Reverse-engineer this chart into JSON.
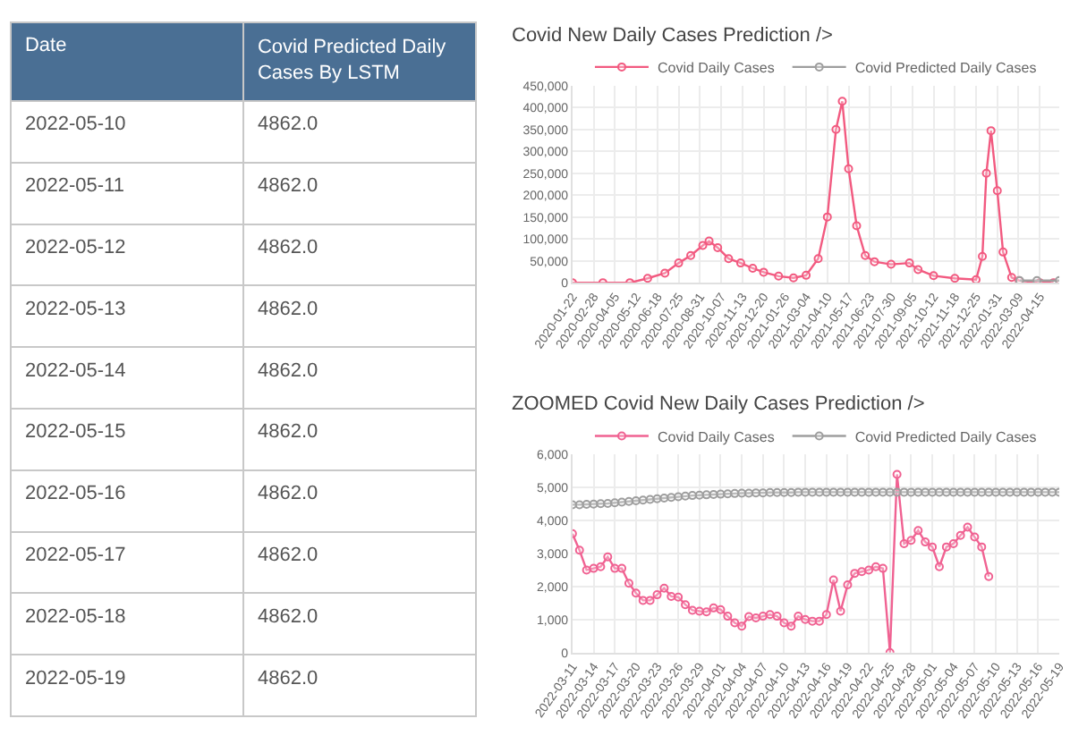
{
  "chart_data": [
    {
      "type": "other",
      "xlabel": "Date",
      "categories": [
        "2022-05-10",
        "2022-05-11",
        "2022-05-12",
        "2022-05-13",
        "2022-05-14",
        "2022-05-15",
        "2022-05-16",
        "2022-05-17",
        "2022-05-18",
        "2022-05-19"
      ],
      "series": [
        {
          "name": "Covid Predicted Daily Cases By LSTM",
          "values": [
            4862,
            4862,
            4862,
            4862,
            4862,
            4862,
            4862,
            4862,
            4862,
            4862
          ],
          "value_labels": [
            "4862.0",
            "4862.0",
            "4862.0",
            "4862.0",
            "4862.0",
            "4862.0",
            "4862.0",
            "4862.0",
            "4862.0",
            "4862.0"
          ]
        }
      ],
      "subtitle": null
    },
    {
      "type": "line",
      "title": "Covid New Daily Cases Prediction />",
      "series": [
        {
          "name": "Covid Daily Cases",
          "color": "#f25a80",
          "x": [
            "2020-01-22",
            "2020-03-15",
            "2020-05-01",
            "2020-06-01",
            "2020-07-01",
            "2020-07-25",
            "2020-08-15",
            "2020-09-05",
            "2020-09-16",
            "2020-10-01",
            "2020-10-20",
            "2020-11-10",
            "2020-12-01",
            "2020-12-20",
            "2021-01-15",
            "2021-02-10",
            "2021-03-04",
            "2021-03-25",
            "2021-04-10",
            "2021-04-25",
            "2021-05-06",
            "2021-05-17",
            "2021-05-31",
            "2021-06-15",
            "2021-07-01",
            "2021-07-30",
            "2021-08-31",
            "2021-09-15",
            "2021-10-12",
            "2021-11-18",
            "2021-12-25",
            "2022-01-05",
            "2022-01-12",
            "2022-01-20",
            "2022-01-31",
            "2022-02-10",
            "2022-02-25",
            "2022-03-10",
            "2022-04-15",
            "2022-05-09"
          ],
          "values": [
            0,
            0,
            0,
            10000,
            22000,
            45000,
            62000,
            85000,
            95000,
            80000,
            55000,
            45000,
            33000,
            24000,
            15000,
            11000,
            17000,
            55000,
            150000,
            350000,
            414000,
            260000,
            130000,
            62000,
            48000,
            42000,
            45000,
            30000,
            16000,
            10000,
            7000,
            60000,
            250000,
            347000,
            210000,
            70000,
            12000,
            5000,
            0,
            0
          ]
        },
        {
          "name": "Covid Predicted Daily Cases",
          "color": "#9e9e9e",
          "x": [
            "2022-03-11",
            "2022-04-10",
            "2022-05-19"
          ],
          "values": [
            5000,
            5000,
            5000
          ]
        }
      ],
      "xlim": [
        "2020-01-22",
        "2022-05-19"
      ],
      "xticks": [
        "2020-01-22",
        "2020-02-28",
        "2020-04-05",
        "2020-05-12",
        "2020-06-18",
        "2020-07-25",
        "2020-08-31",
        "2020-10-07",
        "2020-11-13",
        "2020-12-20",
        "2021-01-26",
        "2021-03-04",
        "2021-04-10",
        "2021-05-17",
        "2021-06-23",
        "2021-07-30",
        "2021-09-05",
        "2021-10-12",
        "2021-11-18",
        "2021-12-25",
        "2022-01-31",
        "2022-03-09",
        "2022-04-15"
      ],
      "ylim": [
        0,
        450000
      ],
      "yticks": [
        0,
        {
          "value": 50000,
          "label": "50,000"
        },
        {
          "value": 100000,
          "label": "100,000"
        },
        {
          "value": 150000,
          "label": "150,000"
        },
        {
          "value": 200000,
          "label": "200,000"
        },
        {
          "value": 250000,
          "label": "250,000"
        },
        {
          "value": 300000,
          "label": "300,000"
        },
        {
          "value": 350000,
          "label": "350,000"
        },
        {
          "value": 400000,
          "label": "400,000"
        },
        {
          "value": 450000,
          "label": "450,000"
        }
      ],
      "grid": true,
      "legend": "top",
      "marker": "circle",
      "line_style": "solid"
    },
    {
      "type": "line",
      "title": "ZOOMED Covid New Daily Cases Prediction />",
      "series": [
        {
          "name": "Covid Daily Cases",
          "color": "#f06292",
          "x": [
            "2022-03-11",
            "2022-03-12",
            "2022-03-13",
            "2022-03-14",
            "2022-03-15",
            "2022-03-16",
            "2022-03-17",
            "2022-03-18",
            "2022-03-19",
            "2022-03-20",
            "2022-03-21",
            "2022-03-22",
            "2022-03-23",
            "2022-03-24",
            "2022-03-25",
            "2022-03-26",
            "2022-03-27",
            "2022-03-28",
            "2022-03-29",
            "2022-03-30",
            "2022-03-31",
            "2022-04-01",
            "2022-04-02",
            "2022-04-03",
            "2022-04-04",
            "2022-04-05",
            "2022-04-06",
            "2022-04-07",
            "2022-04-08",
            "2022-04-09",
            "2022-04-10",
            "2022-04-11",
            "2022-04-12",
            "2022-04-13",
            "2022-04-14",
            "2022-04-15",
            "2022-04-16",
            "2022-04-17",
            "2022-04-18",
            "2022-04-19",
            "2022-04-20",
            "2022-04-21",
            "2022-04-22",
            "2022-04-23",
            "2022-04-24",
            "2022-04-25",
            "2022-04-26",
            "2022-04-27",
            "2022-04-28",
            "2022-04-29",
            "2022-04-30",
            "2022-05-01",
            "2022-05-02",
            "2022-05-03",
            "2022-05-04",
            "2022-05-05",
            "2022-05-06",
            "2022-05-07",
            "2022-05-08",
            "2022-05-09"
          ],
          "values": [
            3600,
            3100,
            2500,
            2550,
            2600,
            2900,
            2550,
            2550,
            2100,
            1800,
            1580,
            1580,
            1750,
            1950,
            1700,
            1680,
            1450,
            1280,
            1250,
            1230,
            1350,
            1300,
            1100,
            900,
            800,
            1090,
            1050,
            1100,
            1150,
            1100,
            900,
            800,
            1100,
            1000,
            950,
            950,
            1150,
            2200,
            1250,
            2050,
            2400,
            2450,
            2500,
            2600,
            2550,
            0,
            5400,
            3300,
            3400,
            3700,
            3350,
            3200,
            2600,
            3200,
            3300,
            3550,
            3800,
            3500,
            3200,
            2300
          ]
        },
        {
          "name": "Covid Predicted Daily Cases",
          "color": "#9e9e9e",
          "x": [
            "2022-03-11",
            "2022-03-12",
            "2022-03-13",
            "2022-03-14",
            "2022-03-15",
            "2022-03-16",
            "2022-03-17",
            "2022-03-18",
            "2022-03-19",
            "2022-03-20",
            "2022-03-21",
            "2022-03-22",
            "2022-03-23",
            "2022-03-24",
            "2022-03-25",
            "2022-03-26",
            "2022-03-27",
            "2022-03-28",
            "2022-03-29",
            "2022-03-30",
            "2022-03-31",
            "2022-04-01",
            "2022-04-02",
            "2022-04-03",
            "2022-04-04",
            "2022-04-05",
            "2022-04-06",
            "2022-04-07",
            "2022-04-08",
            "2022-04-09",
            "2022-04-10",
            "2022-04-11",
            "2022-04-12",
            "2022-04-13",
            "2022-04-14",
            "2022-04-15",
            "2022-04-16",
            "2022-04-17",
            "2022-04-18",
            "2022-04-19",
            "2022-04-20",
            "2022-04-21",
            "2022-04-22",
            "2022-04-23",
            "2022-04-24",
            "2022-04-25",
            "2022-04-26",
            "2022-04-27",
            "2022-04-28",
            "2022-04-29",
            "2022-04-30",
            "2022-05-01",
            "2022-05-02",
            "2022-05-03",
            "2022-05-04",
            "2022-05-05",
            "2022-05-06",
            "2022-05-07",
            "2022-05-08",
            "2022-05-09",
            "2022-05-10",
            "2022-05-11",
            "2022-05-12",
            "2022-05-13",
            "2022-05-14",
            "2022-05-15",
            "2022-05-16",
            "2022-05-17",
            "2022-05-18",
            "2022-05-19"
          ],
          "values": [
            4480,
            4480,
            4490,
            4500,
            4510,
            4520,
            4540,
            4560,
            4580,
            4600,
            4620,
            4640,
            4660,
            4680,
            4700,
            4720,
            4740,
            4760,
            4770,
            4780,
            4790,
            4800,
            4810,
            4820,
            4830,
            4830,
            4840,
            4840,
            4850,
            4850,
            4850,
            4850,
            4860,
            4860,
            4860,
            4860,
            4860,
            4860,
            4860,
            4860,
            4860,
            4860,
            4860,
            4860,
            4860,
            4860,
            4860,
            4860,
            4860,
            4860,
            4860,
            4860,
            4860,
            4860,
            4860,
            4860,
            4860,
            4860,
            4860,
            4860,
            4860,
            4860,
            4860,
            4860,
            4860,
            4860,
            4860,
            4860,
            4860,
            4860
          ]
        }
      ],
      "xlim": [
        "2022-03-11",
        "2022-05-19"
      ],
      "xticks": [
        "2022-03-11",
        "2022-03-14",
        "2022-03-17",
        "2022-03-20",
        "2022-03-23",
        "2022-03-26",
        "2022-03-29",
        "2022-04-01",
        "2022-04-04",
        "2022-04-07",
        "2022-04-10",
        "2022-04-13",
        "2022-04-16",
        "2022-04-19",
        "2022-04-22",
        "2022-04-25",
        "2022-04-28",
        "2022-05-01",
        "2022-05-04",
        "2022-05-07",
        "2022-05-10",
        "2022-05-13",
        "2022-05-16",
        "2022-05-19"
      ],
      "ylim": [
        0,
        6000
      ],
      "yticks": [
        0,
        {
          "value": 1000,
          "label": "1,000"
        },
        {
          "value": 2000,
          "label": "2,000"
        },
        {
          "value": 3000,
          "label": "3,000"
        },
        {
          "value": 4000,
          "label": "4,000"
        },
        {
          "value": 5000,
          "label": "5,000"
        },
        {
          "value": 6000,
          "label": "6,000"
        }
      ],
      "grid": true,
      "legend": "top",
      "marker": "circle",
      "line_style": "solid"
    }
  ]
}
